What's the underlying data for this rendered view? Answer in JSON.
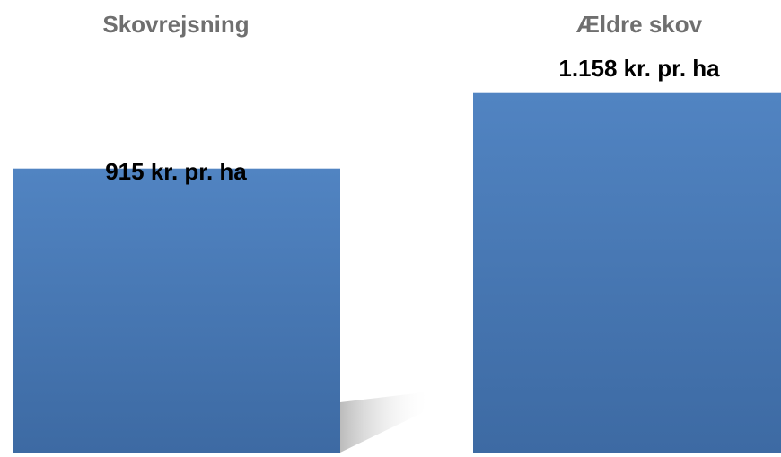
{
  "chart_data": {
    "type": "bar",
    "categories": [
      "Skovrejsning",
      "Ældre skov"
    ],
    "values": [
      915,
      1158
    ],
    "data_labels": [
      "915 kr. pr. ha",
      "1.158 kr. pr. ha"
    ],
    "title": "",
    "xlabel": "",
    "ylabel": "",
    "ylim": [
      0,
      1458
    ],
    "grid": false,
    "legend": "none",
    "bar_color": "#4a7ab8"
  }
}
